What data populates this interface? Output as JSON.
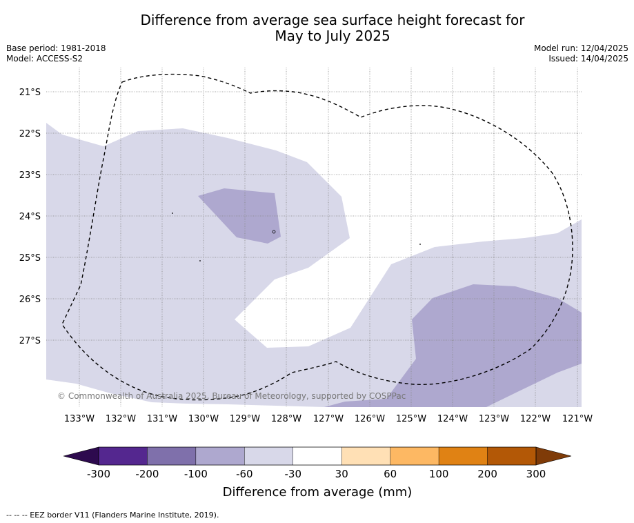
{
  "title_line1": "Difference from average sea surface height forecast for",
  "title_line2": "May to July 2025",
  "base_period": "Base period: 1981-2018",
  "model": "Model: ACCESS-S2",
  "model_run": "Model run: 12/04/2025",
  "issued": "Issued: 14/04/2025",
  "copyright": "© Commonwealth of Australia 2025, Bureau of Meteorology, supported by COSPPac",
  "lat_labels": [
    "21°S",
    "22°S",
    "23°S",
    "24°S",
    "25°S",
    "26°S",
    "27°S"
  ],
  "lon_labels": [
    "133°W",
    "132°W",
    "131°W",
    "130°W",
    "129°W",
    "128°W",
    "127°W",
    "126°W",
    "125°W",
    "124°W",
    "123°W",
    "122°W",
    "121°W"
  ],
  "colorbar": {
    "title": "Difference from average (mm)",
    "tick_labels": [
      "-300",
      "-200",
      "-100",
      "-60",
      "-30",
      "30",
      "60",
      "100",
      "200",
      "300"
    ],
    "colors": [
      "#54278f",
      "#7f70ab",
      "#aea8cf",
      "#d8d8e9",
      "#ffffff",
      "#ffe0b5",
      "#fdb863",
      "#e08214",
      "#b35806"
    ],
    "under_color": "#2d0a4e",
    "over_color": "#7f3b08"
  },
  "legend_footer": "-- -- -- EEZ border V11 (Flanders Marine Institute, 2019).",
  "fill_colors": {
    "light": "#d8d8e9",
    "medium": "#aea8cf"
  }
}
